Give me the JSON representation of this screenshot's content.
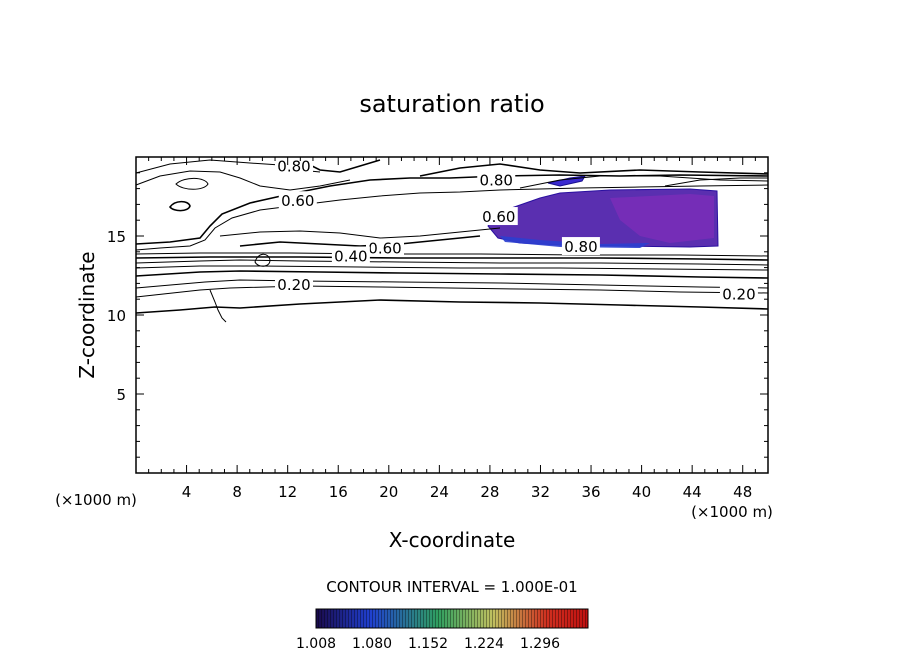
{
  "chart_data": {
    "type": "contour",
    "title": "saturation ratio",
    "xlabel": "X-coordinate",
    "ylabel": "Z-coordinate",
    "x_unit": "(×1000 m)",
    "z_unit": "(×1000 m)",
    "xlim": [
      0,
      50
    ],
    "ylim": [
      0,
      20
    ],
    "x_ticks": [
      4,
      8,
      12,
      16,
      20,
      24,
      28,
      32,
      36,
      40,
      44,
      48
    ],
    "y_ticks": [
      5,
      10,
      15
    ],
    "contour_interval_text": "CONTOUR INTERVAL = 1.000E-01",
    "contour_labels": [
      {
        "text": "0.80",
        "x": 12.5,
        "z": 19.4
      },
      {
        "text": "0.80",
        "x": 28.5,
        "z": 18.5
      },
      {
        "text": "0.60",
        "x": 12.8,
        "z": 17.2
      },
      {
        "text": "0.60",
        "x": 28.7,
        "z": 16.2
      },
      {
        "text": "0.60",
        "x": 19.7,
        "z": 14.2
      },
      {
        "text": "0.40",
        "x": 17.0,
        "z": 13.7
      },
      {
        "text": "0.80",
        "x": 35.2,
        "z": 14.3
      },
      {
        "text": "0.20",
        "x": 12.5,
        "z": 11.9
      },
      {
        "text": "0.20",
        "x": 47.7,
        "z": 11.3
      }
    ],
    "shaded_region_range": [
      1.008,
      1.296
    ],
    "colorbar": {
      "ticks": [
        "1.008",
        "1.080",
        "1.152",
        "1.224",
        "1.296"
      ],
      "colors": [
        "#1a0a4a",
        "#2040d0",
        "#30a060",
        "#c0c060",
        "#d03020",
        "#c01010"
      ]
    },
    "grid": false,
    "legend": "none"
  }
}
